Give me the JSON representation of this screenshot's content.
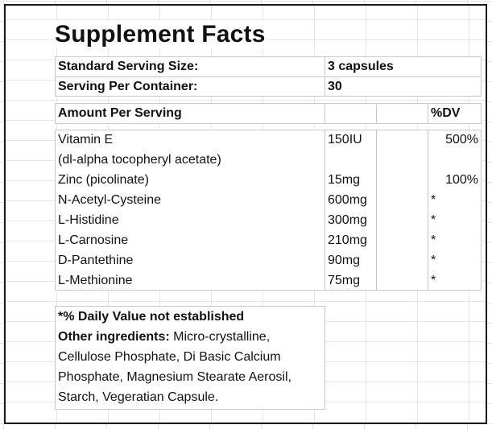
{
  "title": "Supplement Facts",
  "serving": {
    "size_label": "Standard Serving Size:",
    "size_value": "3 capsules",
    "container_label": "Serving Per Container:",
    "container_value": "30"
  },
  "header": {
    "amount": "Amount Per Serving",
    "dv": "%DV"
  },
  "nutrients": [
    {
      "name": "Vitamin E",
      "amount": "150IU",
      "dv": "500%"
    },
    {
      "name": "(dl-alpha tocopheryl acetate)",
      "amount": "",
      "dv": ""
    },
    {
      "name": "Zinc (picolinate)",
      "amount": "15mg",
      "dv": "100%"
    },
    {
      "name": "N-Acetyl-Cysteine",
      "amount": "600mg",
      "dv": "*"
    },
    {
      "name": "L-Histidine",
      "amount": "300mg",
      "dv": "*"
    },
    {
      "name": "L-Carnosine",
      "amount": "210mg",
      "dv": "*"
    },
    {
      "name": "D-Pantethine",
      "amount": "90mg",
      "dv": "*"
    },
    {
      "name": "L-Methionine",
      "amount": "75mg",
      "dv": "*"
    }
  ],
  "footnote": {
    "dv_note": "*% Daily Value not established",
    "other_label": "Other ingredients:",
    "other_text": " Micro-crystalline, Cellulose Phosphate, Di Basic Calcium Phosphate, Magnesium Stearate Aerosil, Starch, Vegeratian Capsule."
  }
}
